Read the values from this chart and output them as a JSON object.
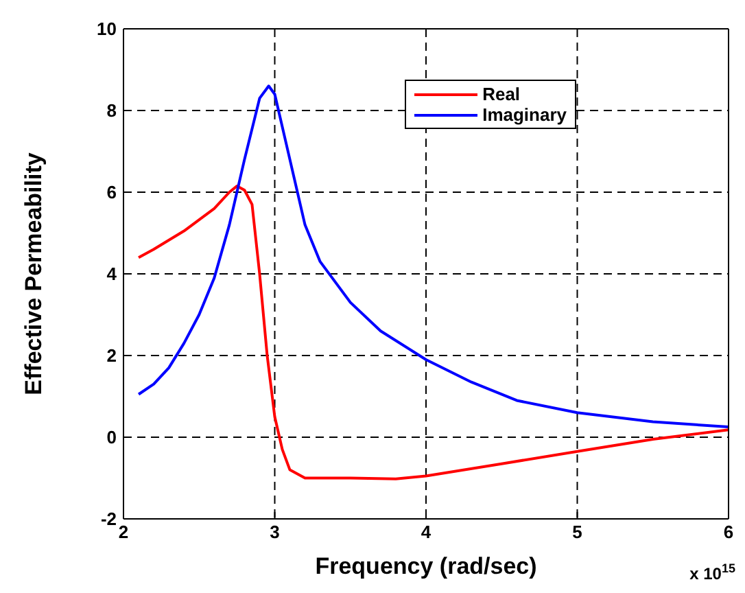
{
  "chart_data": {
    "type": "line",
    "xlabel": "Frequency (rad/sec)",
    "ylabel": "Effective Permeability",
    "annotations": [
      "x 10$^{15}$"
    ],
    "xlim": [
      2,
      6
    ],
    "xticks": [
      2,
      3,
      4,
      5,
      6
    ],
    "ylim": [
      -2,
      10
    ],
    "yticks": [
      -2,
      0,
      2,
      4,
      6,
      8,
      10
    ],
    "grid": true,
    "legend": "top right",
    "marker": "none",
    "line_style": "solid",
    "series": [
      {
        "name": "Real",
        "color": "#ff0000",
        "x": [
          2.1,
          2.2,
          2.4,
          2.6,
          2.7,
          2.75,
          2.8,
          2.85,
          2.9,
          2.95,
          3.0,
          3.05,
          3.1,
          3.2,
          3.5,
          3.8,
          4.0,
          4.5,
          5.0,
          5.5,
          6.0
        ],
        "values": [
          4.4,
          4.6,
          5.05,
          5.6,
          6.0,
          6.15,
          6.05,
          5.7,
          4.0,
          2.0,
          0.5,
          -0.3,
          -0.8,
          -1.0,
          -1.0,
          -1.02,
          -0.95,
          -0.65,
          -0.35,
          -0.05,
          0.18
        ]
      },
      {
        "name": "Imaginary",
        "color": "#0000ff",
        "x": [
          2.1,
          2.2,
          2.3,
          2.4,
          2.5,
          2.6,
          2.7,
          2.8,
          2.9,
          2.96,
          3.0,
          3.1,
          3.2,
          3.3,
          3.5,
          3.7,
          4.0,
          4.3,
          4.6,
          5.0,
          5.5,
          6.0
        ],
        "values": [
          1.05,
          1.3,
          1.7,
          2.3,
          3.0,
          3.9,
          5.2,
          6.8,
          8.3,
          8.6,
          8.4,
          6.8,
          5.2,
          4.3,
          3.3,
          2.6,
          1.9,
          1.35,
          0.9,
          0.6,
          0.38,
          0.25
        ]
      }
    ]
  }
}
